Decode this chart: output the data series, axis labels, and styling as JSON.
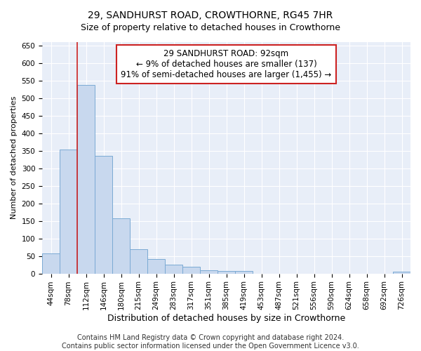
{
  "title": "29, SANDHURST ROAD, CROWTHORNE, RG45 7HR",
  "subtitle": "Size of property relative to detached houses in Crowthorne",
  "xlabel": "Distribution of detached houses by size in Crowthorne",
  "ylabel": "Number of detached properties",
  "categories": [
    "44sqm",
    "78sqm",
    "112sqm",
    "146sqm",
    "180sqm",
    "215sqm",
    "249sqm",
    "283sqm",
    "317sqm",
    "351sqm",
    "385sqm",
    "419sqm",
    "453sqm",
    "487sqm",
    "521sqm",
    "556sqm",
    "590sqm",
    "624sqm",
    "658sqm",
    "692sqm",
    "726sqm"
  ],
  "values": [
    58,
    353,
    538,
    336,
    157,
    69,
    42,
    26,
    20,
    9,
    8,
    8,
    0,
    0,
    0,
    0,
    0,
    0,
    0,
    0,
    5
  ],
  "bar_color": "#c8d8ee",
  "bar_edge_color": "#7baad4",
  "property_line_x": 1.5,
  "property_line_color": "#cc2222",
  "annotation_text": "29 SANDHURST ROAD: 92sqm\n← 9% of detached houses are smaller (137)\n91% of semi-detached houses are larger (1,455) →",
  "annotation_box_color": "#ffffff",
  "annotation_box_edge_color": "#cc2222",
  "ylim": [
    0,
    660
  ],
  "yticks": [
    0,
    50,
    100,
    150,
    200,
    250,
    300,
    350,
    400,
    450,
    500,
    550,
    600,
    650
  ],
  "background_color": "#e8eef8",
  "grid_color": "#ffffff",
  "footer_text": "Contains HM Land Registry data © Crown copyright and database right 2024.\nContains public sector information licensed under the Open Government Licence v3.0.",
  "title_fontsize": 10,
  "subtitle_fontsize": 9,
  "xlabel_fontsize": 9,
  "ylabel_fontsize": 8,
  "tick_fontsize": 7.5,
  "annotation_fontsize": 8.5,
  "footer_fontsize": 7
}
